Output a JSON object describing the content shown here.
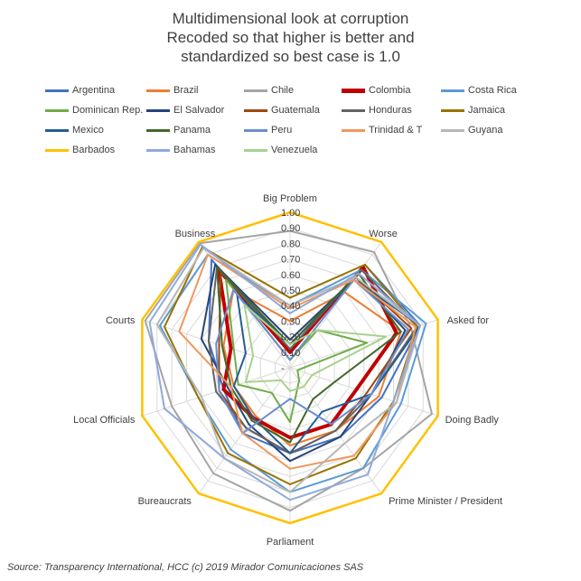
{
  "source": "Source:  Transparency International, HCC (c) 2019 Mirador Comunicaciones SAS",
  "chart_data": {
    "type": "radar",
    "title": [
      "Multidimensional look at corruption",
      "Recoded so that higher is better and",
      "standardized so best case is 1.0"
    ],
    "axes": [
      "Big Problem",
      "Worse",
      "Asked for",
      "Doing Badly",
      "Prime Minister / President",
      "Parliament",
      "Bureaucrats",
      "Local Officials",
      "Courts",
      "Business"
    ],
    "tick_labels": [
      "-",
      "0.10",
      "0.20",
      "0.30",
      "0.40",
      "0.50",
      "0.60",
      "0.70",
      "0.80",
      "0.90",
      "1.00"
    ],
    "range": [
      0,
      1
    ],
    "legend_position": "top",
    "series": [
      {
        "name": "Argentina",
        "color": "#4472C4",
        "width": 2,
        "values": [
          0.12,
          0.82,
          0.88,
          0.62,
          0.55,
          0.55,
          0.52,
          0.45,
          0.55,
          0.86
        ]
      },
      {
        "name": "Brazil",
        "color": "#ED7D31",
        "width": 2,
        "values": [
          0.3,
          0.6,
          0.75,
          0.6,
          0.5,
          0.5,
          0.38,
          0.38,
          0.45,
          0.62
        ]
      },
      {
        "name": "Chile",
        "color": "#A5A5A5",
        "width": 2,
        "values": [
          0.88,
          0.92,
          0.82,
          0.96,
          0.8,
          0.92,
          0.84,
          0.8,
          0.98,
          0.99
        ]
      },
      {
        "name": "Colombia",
        "color": "#C00000",
        "width": 4,
        "values": [
          0.1,
          0.8,
          0.72,
          0.45,
          0.45,
          0.45,
          0.4,
          0.45,
          0.4,
          0.78
        ]
      },
      {
        "name": "Costa Rica",
        "color": "#5B9BD5",
        "width": 2,
        "values": [
          0.4,
          0.78,
          0.92,
          0.75,
          0.8,
          0.8,
          0.65,
          0.62,
          0.88,
          0.9
        ]
      },
      {
        "name": "Dominican Rep.",
        "color": "#70AD47",
        "width": 2,
        "values": [
          0.05,
          0.3,
          0.52,
          0.05,
          0.1,
          0.35,
          0.2,
          0.35,
          0.38,
          0.7
        ]
      },
      {
        "name": "El Salvador",
        "color": "#264478",
        "width": 2,
        "values": [
          0.18,
          0.72,
          0.78,
          0.55,
          0.55,
          0.6,
          0.45,
          0.42,
          0.6,
          0.82
        ]
      },
      {
        "name": "Guatemala",
        "color": "#9E480E",
        "width": 2,
        "values": [
          0.15,
          0.72,
          0.82,
          0.52,
          0.5,
          0.55,
          0.48,
          0.48,
          0.48,
          0.76
        ]
      },
      {
        "name": "Honduras",
        "color": "#636363",
        "width": 2,
        "values": [
          0.12,
          0.78,
          0.86,
          0.55,
          0.5,
          0.55,
          0.48,
          0.5,
          0.55,
          0.8
        ]
      },
      {
        "name": "Jamaica",
        "color": "#997300",
        "width": 2,
        "values": [
          0.45,
          0.82,
          0.86,
          0.7,
          0.72,
          0.75,
          0.68,
          0.62,
          0.85,
          0.96
        ]
      },
      {
        "name": "Mexico",
        "color": "#255E91",
        "width": 2,
        "values": [
          0.15,
          0.7,
          0.88,
          0.55,
          0.35,
          0.55,
          0.4,
          0.38,
          0.3,
          0.58
        ]
      },
      {
        "name": "Panama",
        "color": "#43682B",
        "width": 2,
        "values": [
          0.15,
          0.75,
          0.75,
          0.3,
          0.25,
          0.48,
          0.42,
          0.4,
          0.46,
          0.8
        ]
      },
      {
        "name": "Peru",
        "color": "#698ED0",
        "width": 2,
        "values": [
          0.05,
          0.7,
          0.8,
          0.55,
          0.45,
          0.2,
          0.52,
          0.48,
          0.5,
          0.62
        ]
      },
      {
        "name": "Trinidad & T",
        "color": "#F1975A",
        "width": 2,
        "values": [
          0.38,
          0.7,
          0.85,
          0.72,
          0.7,
          0.65,
          0.52,
          0.4,
          0.75,
          0.9
        ]
      },
      {
        "name": "Guyana",
        "color": "#B7B7B7",
        "width": 2,
        "values": [
          0.4,
          0.72,
          0.88,
          0.72,
          0.6,
          0.8,
          0.72,
          0.6,
          0.9,
          0.95
        ]
      },
      {
        "name": "Barbados",
        "color": "#FFC000",
        "width": 2.5,
        "values": [
          1.0,
          1.0,
          1.0,
          1.0,
          1.0,
          1.0,
          1.0,
          1.0,
          1.0,
          1.0
        ]
      },
      {
        "name": "Bahamas",
        "color": "#8FAADC",
        "width": 2,
        "values": [
          0.35,
          0.75,
          0.88,
          0.7,
          0.85,
          0.85,
          0.72,
          0.85,
          0.95,
          0.98
        ]
      },
      {
        "name": "Venezuela",
        "color": "#A9D18E",
        "width": 2,
        "values": [
          0.15,
          0.3,
          0.65,
          0.15,
          0.15,
          0.15,
          0.1,
          0.3,
          0.25,
          0.5
        ]
      }
    ]
  }
}
